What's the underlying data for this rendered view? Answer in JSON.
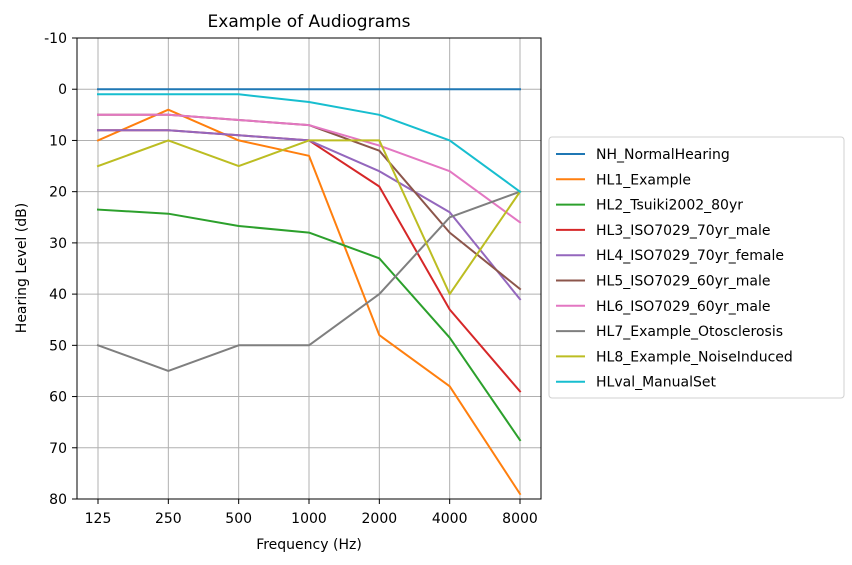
{
  "chart_data": {
    "type": "line",
    "title": "Example of Audiograms",
    "xlabel": "Frequency (Hz)",
    "ylabel": "Hearing Level (dB)",
    "categories": [
      "125",
      "250",
      "500",
      "1000",
      "2000",
      "4000",
      "8000"
    ],
    "yticks": [
      "-10",
      "0",
      "10",
      "20",
      "30",
      "40",
      "50",
      "60",
      "70",
      "80"
    ],
    "ylim": [
      80,
      -10
    ],
    "y_inverted": true,
    "grid": true,
    "legend_position": "outside-right",
    "series": [
      {
        "name": "NH_NormalHearing",
        "color": "#1f77b4",
        "values": [
          0,
          0,
          0,
          0,
          0,
          0,
          0
        ]
      },
      {
        "name": "HL1_Example",
        "color": "#ff7f0e",
        "values": [
          10,
          4,
          10,
          13,
          48,
          58,
          79
        ]
      },
      {
        "name": "HL2_Tsuiki2002_80yr",
        "color": "#2ca02c",
        "values": [
          23.5,
          24.3,
          26.7,
          28,
          33,
          48.5,
          68.5
        ]
      },
      {
        "name": "HL3_ISO7029_70yr_male",
        "color": "#d62728",
        "values": [
          8,
          8,
          9,
          10,
          19,
          43,
          59
        ]
      },
      {
        "name": "HL4_ISO7029_70yr_female",
        "color": "#9467bd",
        "values": [
          8,
          8,
          9,
          10,
          16,
          24,
          41
        ]
      },
      {
        "name": "HL5_ISO7029_60yr_male",
        "color": "#8c564b",
        "values": [
          5,
          5,
          6,
          7,
          12,
          28,
          39
        ]
      },
      {
        "name": "HL6_ISO7029_60yr_male",
        "color": "#e377c2",
        "values": [
          5,
          5,
          6,
          7,
          11,
          16,
          26
        ]
      },
      {
        "name": "HL7_Example_Otosclerosis",
        "color": "#7f7f7f",
        "values": [
          50,
          55,
          50,
          50,
          40,
          25,
          20
        ]
      },
      {
        "name": "HL8_Example_NoiseInduced",
        "color": "#bcbd22",
        "values": [
          15,
          10,
          15,
          10,
          10,
          40,
          20
        ]
      },
      {
        "name": "HLval_ManualSet",
        "color": "#17becf",
        "values": [
          1,
          1,
          1,
          2.5,
          5,
          10,
          20
        ]
      }
    ]
  }
}
